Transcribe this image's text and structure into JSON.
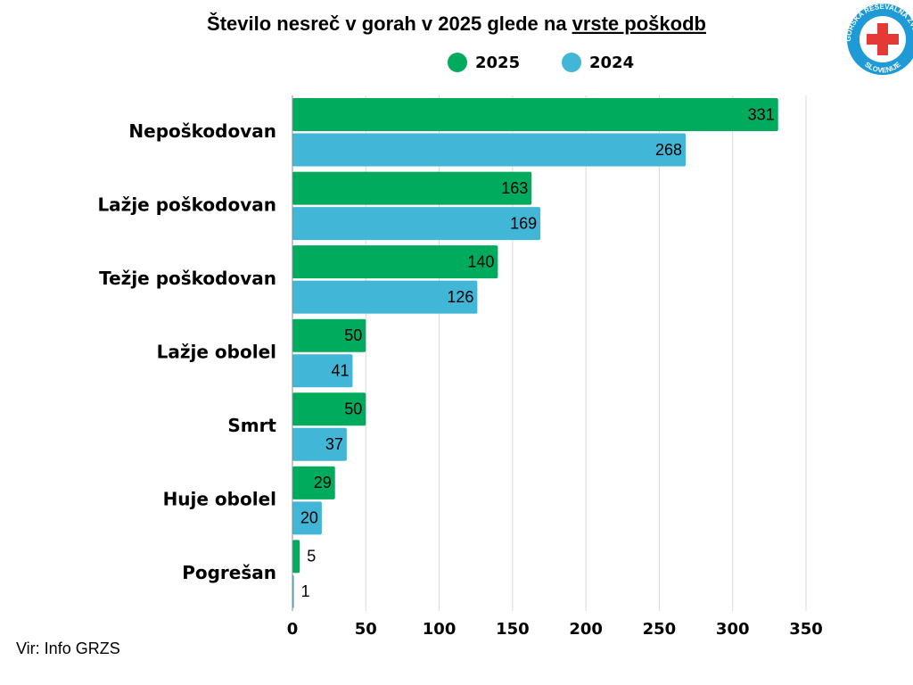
{
  "chart_data": {
    "type": "barh",
    "title": "Število nesreč v gorah v 2025 glede na",
    "title_emphasis": "vrste poškodb",
    "categories": [
      "Nepoškodovan",
      "Lažje poškodovan",
      "Težje poškodovan",
      "Lažje obolel",
      "Smrt",
      "Huje obolel",
      "Pogrešan"
    ],
    "series": [
      {
        "name": "2025",
        "color": "#00ab5e",
        "values": [
          331,
          163,
          140,
          50,
          50,
          29,
          5
        ]
      },
      {
        "name": "2024",
        "color": "#41b6d6",
        "values": [
          268,
          169,
          126,
          41,
          37,
          20,
          1
        ]
      }
    ],
    "xlim": [
      0,
      350
    ],
    "xticks": [
      0,
      50,
      100,
      150,
      200,
      250,
      300,
      350
    ],
    "grid": true,
    "source": "Vir: Info GRZS",
    "logo_text": "GORSKA REŠEVALNA ZVEZA",
    "logo_subtext": "SLOVENIJE"
  }
}
